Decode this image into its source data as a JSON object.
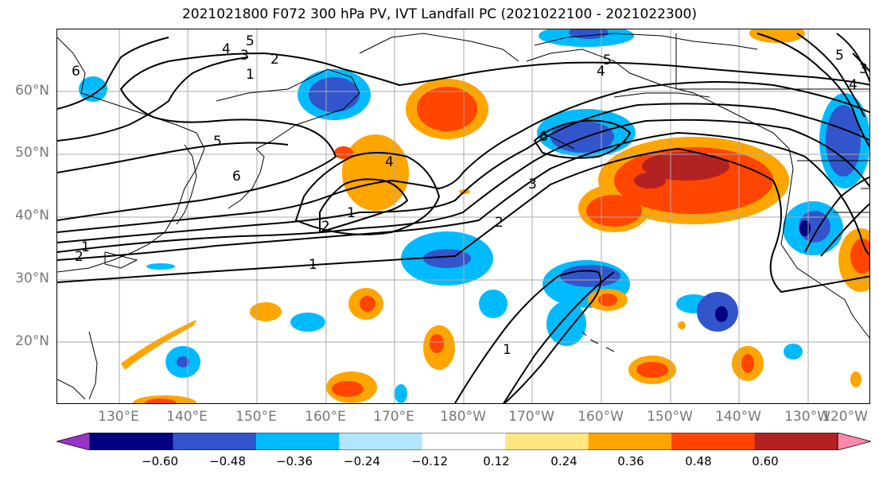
{
  "title": "2021021800 F072 300 hPa PV, IVT Landfall PC (2021022100 - 2021022300)",
  "lat_labels": [
    "60°N",
    "50°N",
    "40°N",
    "30°N",
    "20°N"
  ],
  "lon_labels": [
    "130°E",
    "140°E",
    "150°E",
    "160°E",
    "170°E",
    "180°W",
    "170°W",
    "160°W",
    "150°W",
    "140°W",
    "130°W",
    "120°W"
  ],
  "colorbar": {
    "ticks": [
      "−0.60",
      "−0.48",
      "−0.36",
      "−0.24",
      "−0.12",
      "0.12",
      "0.24",
      "0.36",
      "0.48",
      "0.60"
    ],
    "colors": [
      "#9933cc",
      "#000080",
      "#3355cc",
      "#00bbff",
      "#b3e5fc",
      "#ffffff",
      "#ffe680",
      "#ffa500",
      "#ff4500",
      "#b22222",
      "#ff88aa"
    ]
  },
  "contour_labels": [
    "6",
    "5",
    "4",
    "3",
    "2",
    "1",
    "5",
    "6",
    "4",
    "1",
    "2",
    "1",
    "2",
    "1",
    "5",
    "4",
    "3",
    "2",
    "6",
    "5",
    "4",
    "3",
    "1"
  ],
  "icons": {
    "map": "map-projection"
  }
}
